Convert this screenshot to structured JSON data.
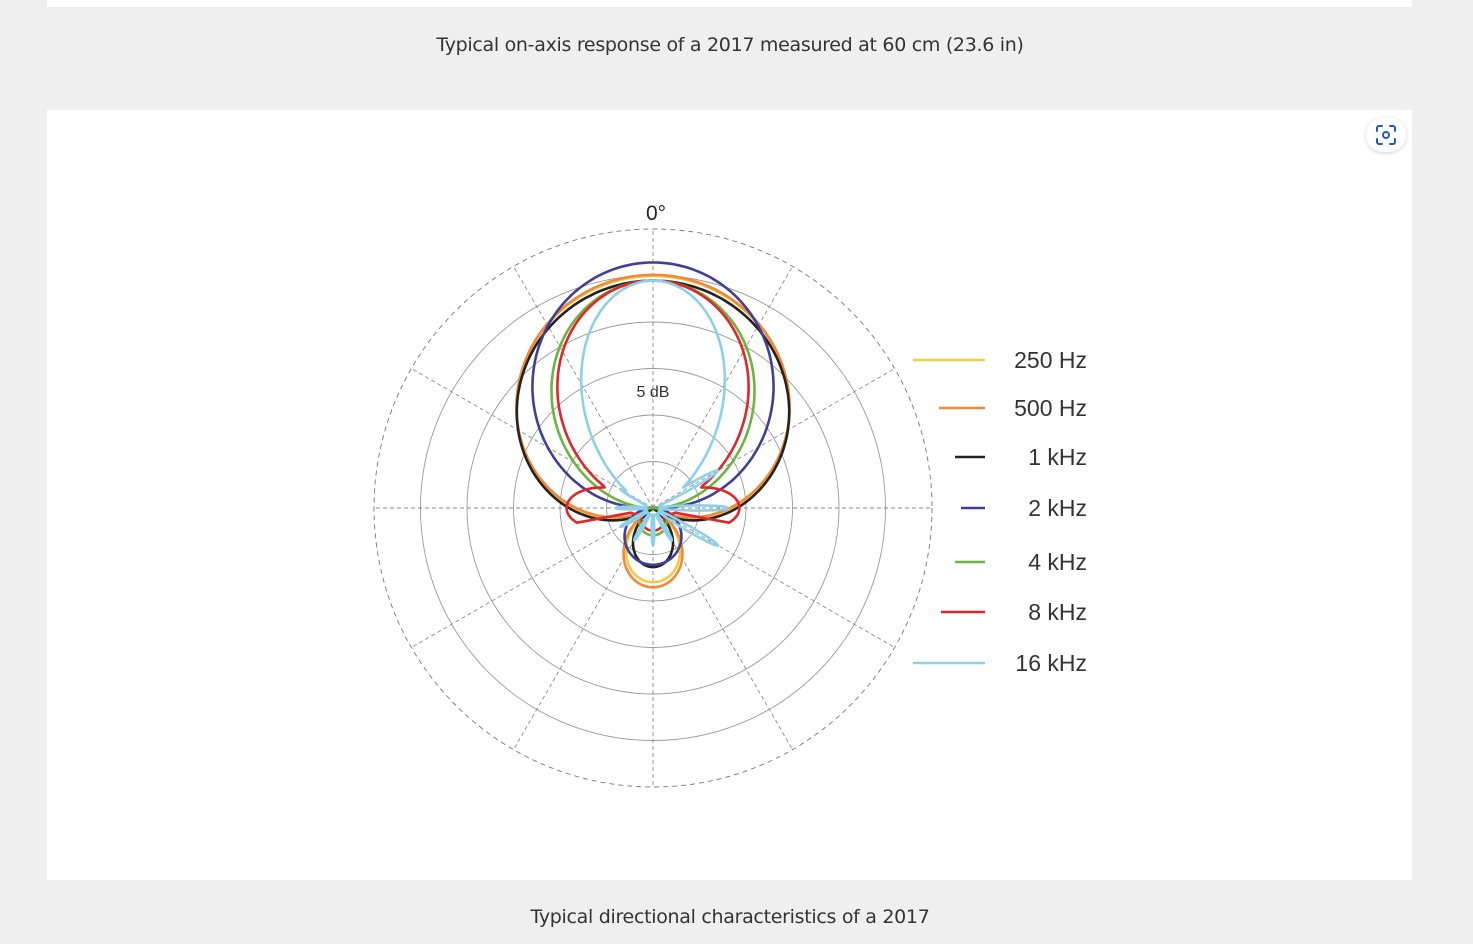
{
  "captions": {
    "top": "Typical on-axis response of a 2017 measured at 60 cm (23.6 in)",
    "bottom": "Typical directional characteristics of a 2017"
  },
  "figure": {
    "zoom_button_icon": "focus-zoom-icon"
  },
  "chart_data": {
    "type": "polar",
    "angle_label": "0°",
    "ring_label": "5 dB",
    "rings": 6,
    "spokes": 12,
    "series": [
      {
        "name": "250 Hz",
        "color": "#f7c948"
      },
      {
        "name": "500 Hz",
        "color": "#ef8a3c"
      },
      {
        "name": "1 kHz",
        "color": "#222222"
      },
      {
        "name": "2 kHz",
        "color": "#3f3f96"
      },
      {
        "name": "4 kHz",
        "color": "#6db33f"
      },
      {
        "name": "8 kHz",
        "color": "#e0262b"
      },
      {
        "name": "16 kHz",
        "color": "#8fd0e6"
      }
    ]
  }
}
